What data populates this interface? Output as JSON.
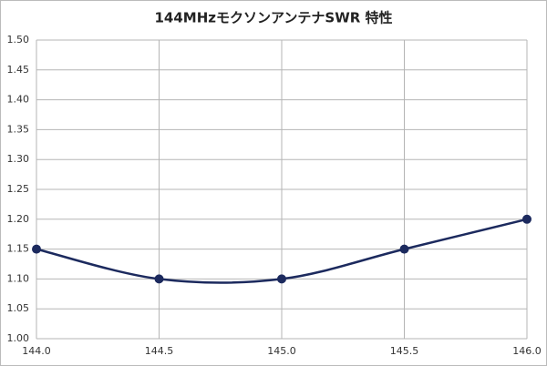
{
  "chart_data": {
    "type": "line",
    "title": "144MHzモクソンアンテナSWR 特性",
    "x": [
      144.0,
      144.5,
      145.0,
      145.5,
      146.0
    ],
    "series": [
      {
        "name": "SWR",
        "color": "#1c2a5e",
        "values": [
          1.15,
          1.1,
          1.1,
          1.15,
          1.2
        ]
      }
    ],
    "xlim": [
      144.0,
      146.0
    ],
    "xticks": [
      {
        "value": 144.0,
        "label": "144.0"
      },
      {
        "value": 144.5,
        "label": "144.5"
      },
      {
        "value": 145.0,
        "label": "145.0"
      },
      {
        "value": 145.5,
        "label": "145.5"
      },
      {
        "value": 146.0,
        "label": "146.0"
      }
    ],
    "ylim": [
      1.0,
      1.5
    ],
    "yticks": [
      {
        "value": 1.0,
        "label": "1.00"
      },
      {
        "value": 1.05,
        "label": "1.05"
      },
      {
        "value": 1.1,
        "label": "1.10"
      },
      {
        "value": 1.15,
        "label": "1.15"
      },
      {
        "value": 1.2,
        "label": "1.20"
      },
      {
        "value": 1.25,
        "label": "1.25"
      },
      {
        "value": 1.3,
        "label": "1.30"
      },
      {
        "value": 1.35,
        "label": "1.35"
      },
      {
        "value": 1.4,
        "label": "1.40"
      },
      {
        "value": 1.45,
        "label": "1.45"
      },
      {
        "value": 1.5,
        "label": "1.50"
      }
    ],
    "grid": true
  }
}
